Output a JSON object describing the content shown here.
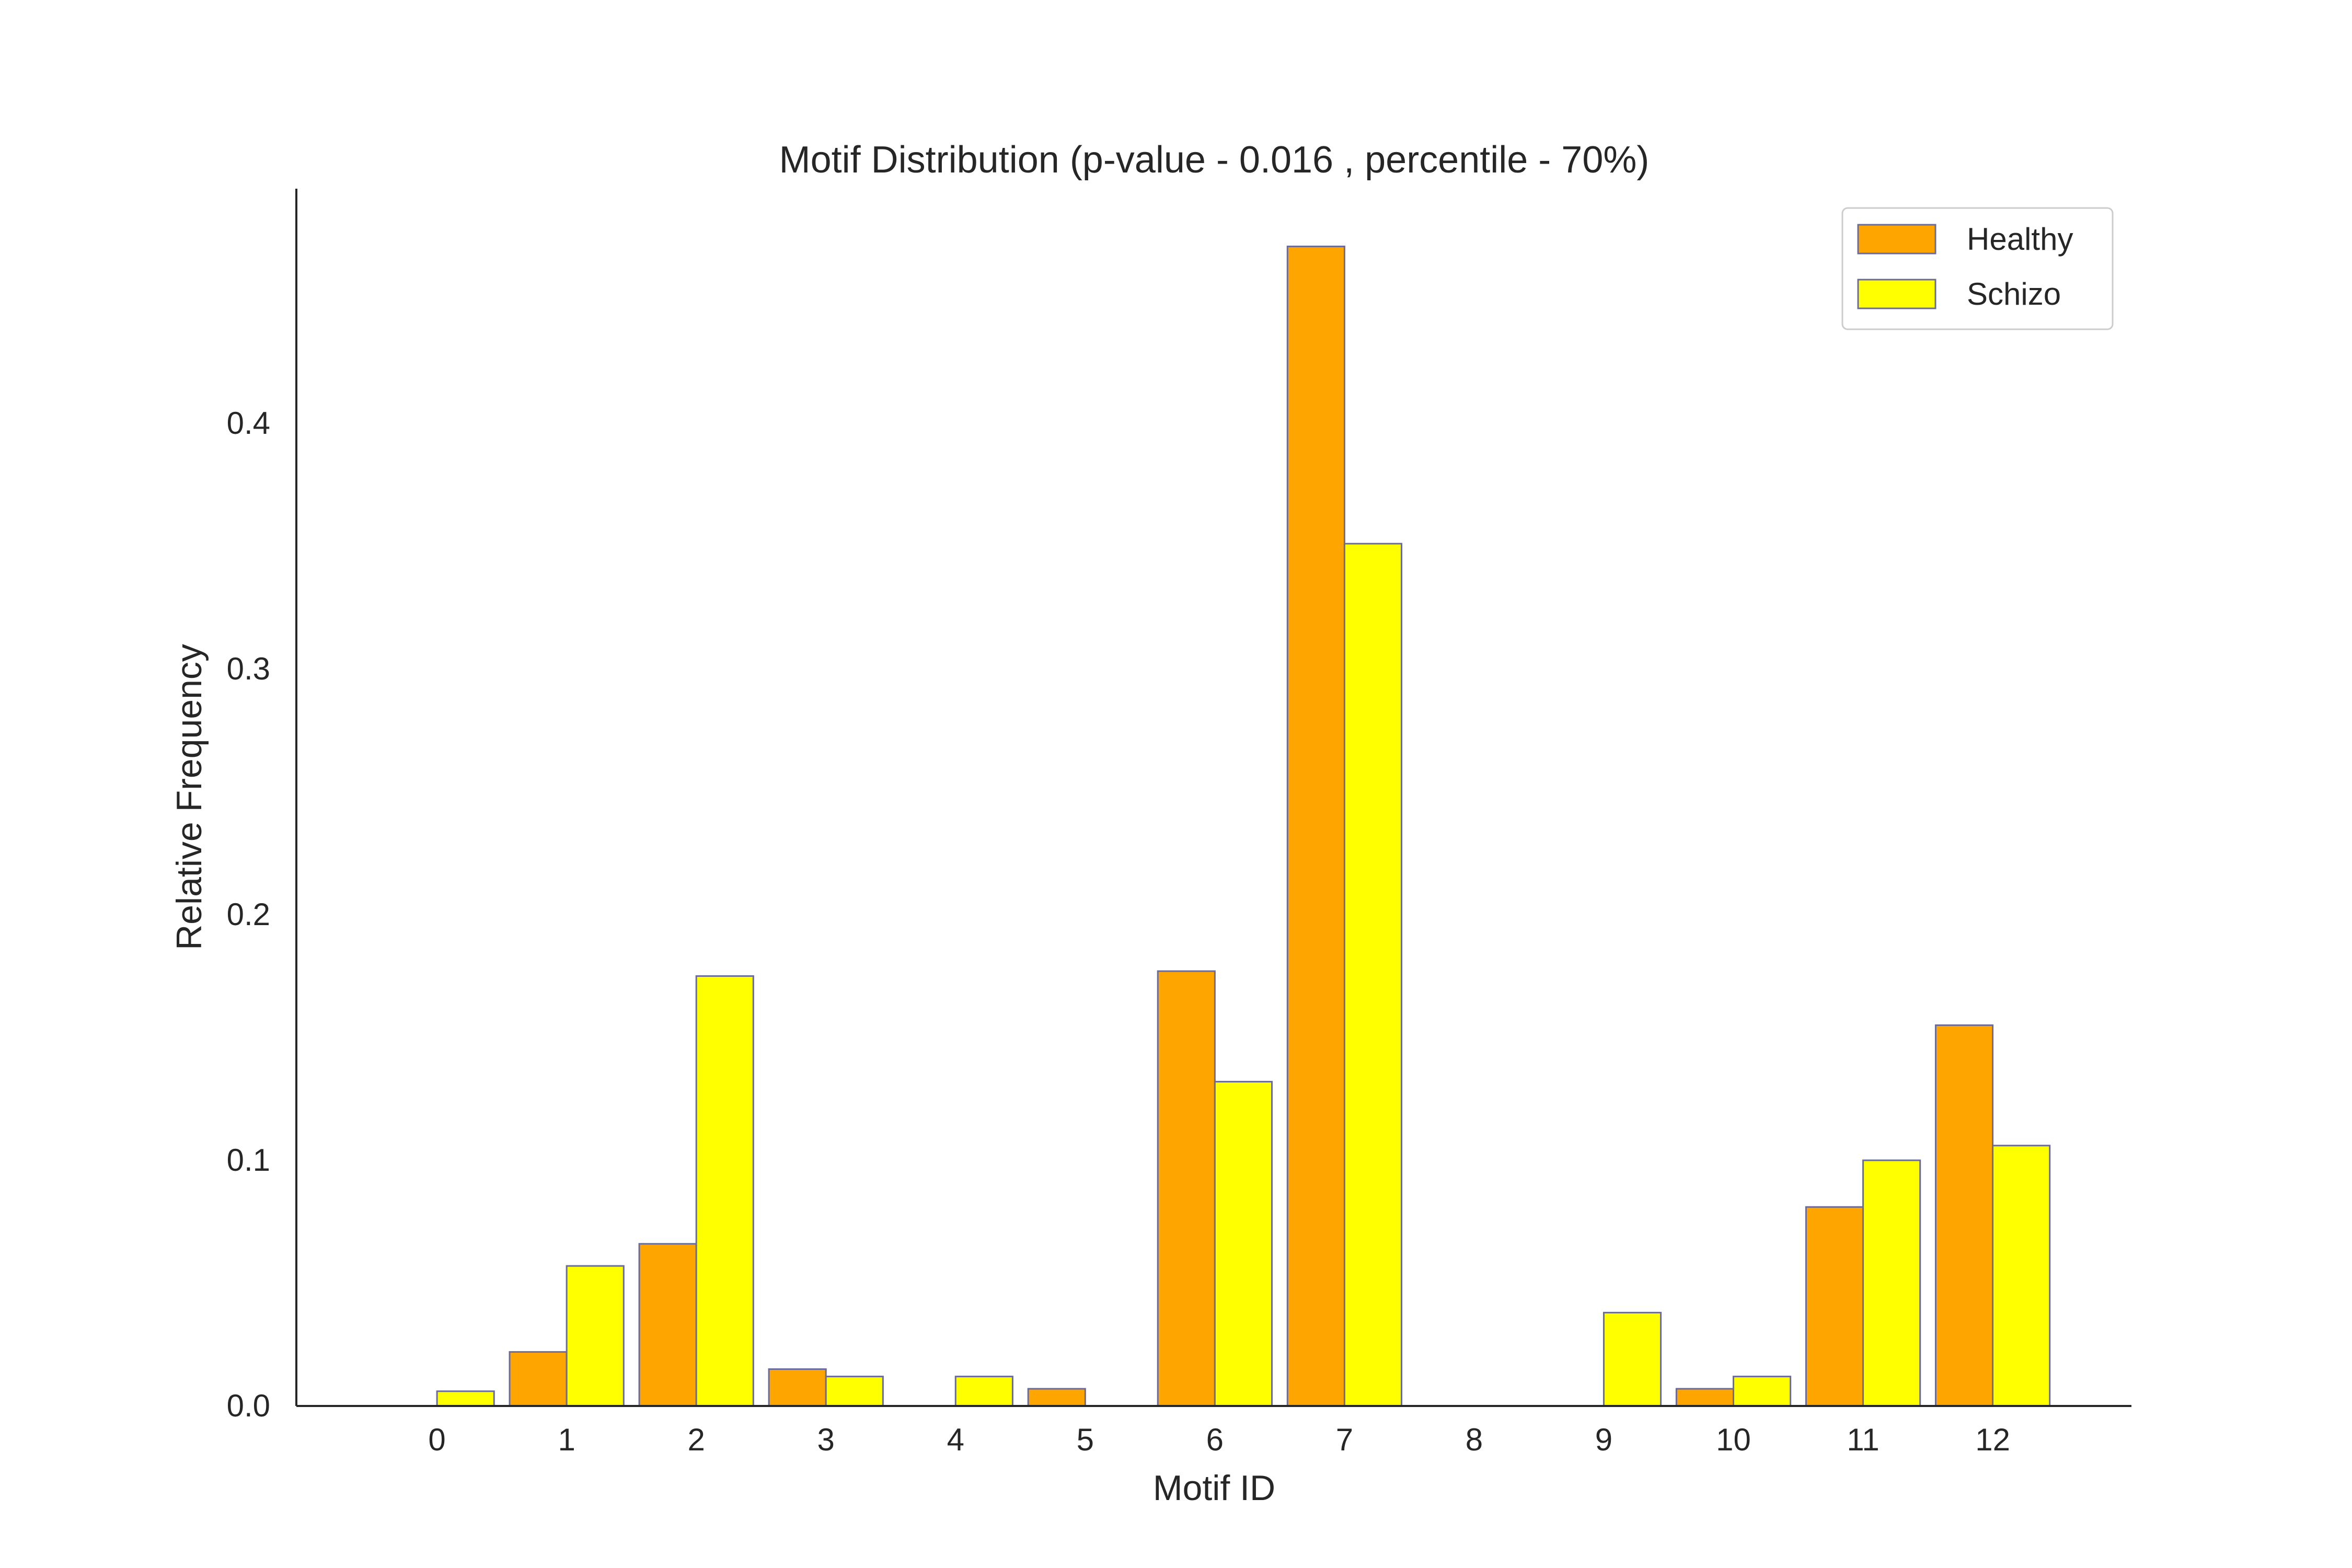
{
  "chart_data": {
    "type": "bar",
    "title": "Motif Distribution (p-value - 0.016 , percentile - 70%)",
    "xlabel": "Motif ID",
    "ylabel": "Relative Frequency",
    "categories": [
      "0",
      "1",
      "2",
      "3",
      "4",
      "5",
      "6",
      "7",
      "8",
      "9",
      "10",
      "11",
      "12"
    ],
    "series": [
      {
        "name": "Healthy",
        "color": "#FFA500",
        "values": [
          0,
          0.022,
          0.066,
          0.015,
          0,
          0.007,
          0.177,
          0.472,
          0,
          0,
          0.007,
          0.081,
          0.155
        ]
      },
      {
        "name": "Schizo",
        "color": "#FFFF00",
        "values": [
          0.006,
          0.057,
          0.175,
          0.012,
          0.012,
          0,
          0.132,
          0.351,
          0,
          0.038,
          0.012,
          0.1,
          0.106
        ]
      }
    ],
    "yticks": [
      "0.0",
      "0.1",
      "0.2",
      "0.3",
      "0.4"
    ],
    "ylim": [
      0,
      0.4955
    ],
    "xlim": [
      -1.085,
      13.07
    ],
    "grid": false,
    "legend": "top-right",
    "edge_color": "#6B6B9A"
  }
}
